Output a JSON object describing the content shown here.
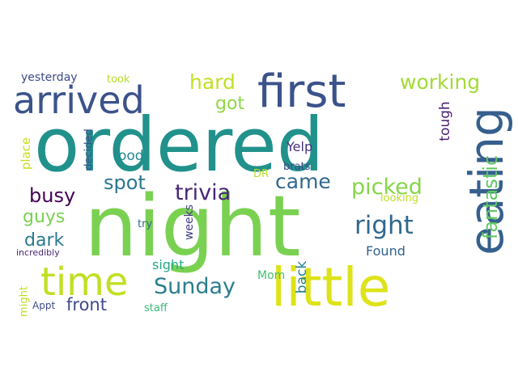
{
  "wordcloud": {
    "words": [
      {
        "text": "ordered",
        "color": "#21918c"
      },
      {
        "text": "night",
        "color": "#7ad151"
      },
      {
        "text": "little",
        "color": "#dde318"
      },
      {
        "text": "eating",
        "color": "#355f8d"
      },
      {
        "text": "first",
        "color": "#3b528b"
      },
      {
        "text": "arrived",
        "color": "#3b528b"
      },
      {
        "text": "time",
        "color": "#c2df23"
      },
      {
        "text": "right",
        "color": "#31688e"
      },
      {
        "text": "Sunday",
        "color": "#2c7e8e"
      },
      {
        "text": "trivia",
        "color": "#482677"
      },
      {
        "text": "picked",
        "color": "#86d549"
      },
      {
        "text": "came",
        "color": "#31688e"
      },
      {
        "text": "working",
        "color": "#a2da37"
      },
      {
        "text": "hard",
        "color": "#c2df23"
      },
      {
        "text": "got",
        "color": "#8fd744"
      },
      {
        "text": "spot",
        "color": "#2a788e"
      },
      {
        "text": "busy",
        "color": "#440154"
      },
      {
        "text": "fantastic",
        "color": "#5ec962"
      },
      {
        "text": "guys",
        "color": "#7ad151"
      },
      {
        "text": "dark",
        "color": "#2a788e"
      },
      {
        "text": "front",
        "color": "#3e4a89"
      },
      {
        "text": "tough",
        "color": "#481f70"
      },
      {
        "text": "Yelp",
        "color": "#46327e"
      },
      {
        "text": "food",
        "color": "#25858e"
      },
      {
        "text": "sight",
        "color": "#22a884"
      },
      {
        "text": "Found",
        "color": "#33638d"
      },
      {
        "text": "back",
        "color": "#26828e"
      },
      {
        "text": "place",
        "color": "#c8e020"
      },
      {
        "text": "decided",
        "color": "#3b528b"
      },
      {
        "text": "yesterday",
        "color": "#3e4a89"
      },
      {
        "text": "took",
        "color": "#b5de2b"
      },
      {
        "text": "weeks",
        "color": "#433e85"
      },
      {
        "text": "brats",
        "color": "#3e4989"
      },
      {
        "text": "looking",
        "color": "#bddf26"
      },
      {
        "text": "DR",
        "color": "#b8de29"
      },
      {
        "text": "try",
        "color": "#31688e"
      },
      {
        "text": "Mom",
        "color": "#44bf70"
      },
      {
        "text": "might",
        "color": "#bddf26"
      },
      {
        "text": "incredibly",
        "color": "#482878"
      },
      {
        "text": "Appt",
        "color": "#3e4a89"
      },
      {
        "text": "staff",
        "color": "#3aba76"
      }
    ]
  }
}
